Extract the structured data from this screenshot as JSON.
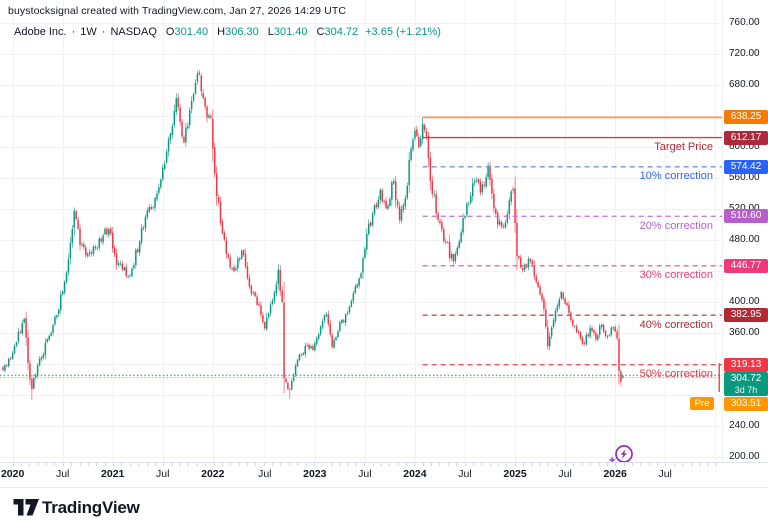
{
  "watermark": "buystocksignal created with TradingView.com, Jan 27, 2026 14:29 UTC",
  "legend": {
    "title": "Adobe Inc.",
    "dot1": "·",
    "timeframe": "1W",
    "dot2": "·",
    "exchange": "NASDAQ",
    "items": [
      {
        "k": "O",
        "v": "301.40"
      },
      {
        "k": "H",
        "v": "306.30"
      },
      {
        "k": "L",
        "v": "301.40"
      },
      {
        "k": "C",
        "v": "304.72"
      }
    ],
    "change": "+3.65 (+1.21%)"
  },
  "footer": {
    "brand": "TradingView"
  },
  "colors": {
    "up": "#089981",
    "down": "#F23645",
    "grid": "#F0F2F5",
    "axis_text": "#131722",
    "close_line": "#089981",
    "pre_line": "#FF9800",
    "flash": "#9C27B0",
    "flash_star": "#A64DFF"
  },
  "chart_data": {
    "type": "candlestick",
    "title": "Adobe Inc. · 1W · NASDAQ",
    "symbol": "Adobe Inc.",
    "timeframe": "1W",
    "exchange": "NASDAQ",
    "last": {
      "open": 301.4,
      "high": 306.3,
      "low": 301.4,
      "close": 304.72,
      "change": "+3.65 (+1.21%)",
      "countdown": "3d 7h"
    },
    "premarket": {
      "label": "Pre",
      "price": 303.51,
      "label_text": "303.51",
      "color": "#FF9800"
    },
    "close_chip": {
      "text": "304.72",
      "countdown": "3d 7h",
      "color": "#089981"
    },
    "y_axis": {
      "min": 190,
      "max": 775,
      "tick_step": 40,
      "grid_ticks": [
        760,
        720,
        680,
        640,
        600,
        560,
        520,
        480,
        440,
        400,
        360,
        320,
        280,
        240,
        200
      ],
      "visible_ticks": [
        760,
        720,
        680,
        600,
        560,
        520,
        480,
        440,
        400,
        360,
        240,
        200
      ]
    },
    "x_axis": {
      "ticks": [
        {
          "label": "2020",
          "week": 5,
          "major": true
        },
        {
          "label": "Jul",
          "week": 31,
          "major": false
        },
        {
          "label": "2021",
          "week": 57,
          "major": true
        },
        {
          "label": "Jul",
          "week": 83,
          "major": false
        },
        {
          "label": "2022",
          "week": 109,
          "major": true
        },
        {
          "label": "Jul",
          "week": 136,
          "major": false
        },
        {
          "label": "2023",
          "week": 162,
          "major": true
        },
        {
          "label": "Jul",
          "week": 188,
          "major": false
        },
        {
          "label": "2024",
          "week": 214,
          "major": true
        },
        {
          "label": "Jul",
          "week": 240,
          "major": false
        },
        {
          "label": "2025",
          "week": 266,
          "major": true
        },
        {
          "label": "Jul",
          "week": 292,
          "major": false
        },
        {
          "label": "2026",
          "week": 318,
          "major": true
        },
        {
          "label": "Jul",
          "week": 344,
          "major": false
        },
        {
          "label": "",
          "week": 370,
          "major": false
        }
      ]
    },
    "levels_start_week": 218,
    "levels": [
      {
        "price": 638.25,
        "label": "638.25",
        "style": "solid",
        "width": 2,
        "line_color": "#F7A168",
        "chip_color": "#F57C00",
        "text": null,
        "text_color": null
      },
      {
        "price": 612.17,
        "label": "612.17",
        "style": "solid",
        "width": 1.4,
        "line_color": "#C0454F",
        "chip_color": "#AD2A3A",
        "text": "Target Price",
        "text_color": "#AD2A3A"
      },
      {
        "price": 574.42,
        "label": "574.42",
        "style": "dashed",
        "width": 1.4,
        "line_color": "#6E93F7",
        "chip_color": "#2962FF",
        "text": "10% correction",
        "text_color": "#2962FF"
      },
      {
        "price": 510.6,
        "label": "510.60",
        "style": "dashed",
        "width": 1.4,
        "line_color": "#C77FD2",
        "chip_color": "#B75FC9",
        "text": "20% correction",
        "text_color": "#B75FC9"
      },
      {
        "price": 446.77,
        "label": "446.77",
        "style": "dashed",
        "width": 1.4,
        "line_color": "#F272A0",
        "chip_color": "#F0397B",
        "text": "30% correction",
        "text_color": "#F0397B"
      },
      {
        "price": 382.95,
        "label": "382.95",
        "style": "dashed",
        "width": 1.4,
        "line_color": "#C94A55",
        "chip_color": "#B22833",
        "text": "40% correction",
        "text_color": "#B22833"
      },
      {
        "price": 319.13,
        "label": "319.13",
        "style": "dashed",
        "width": 1.4,
        "line_color": "#F2545F",
        "chip_color": "#F23645",
        "text": "50% correction",
        "text_color": "#F23645"
      }
    ],
    "price_lines": [
      {
        "price": 304.72,
        "color": "#089981"
      },
      {
        "price": 303.51,
        "color": "#FF9800"
      }
    ],
    "edge_bar": {
      "top_price": 321,
      "bottom_price": 284,
      "color": "#F23645"
    },
    "weeks_total": 323,
    "seed": 5,
    "weekly_close_anchors": [
      [
        0,
        312
      ],
      [
        5,
        334
      ],
      [
        11,
        378
      ],
      [
        14,
        300
      ],
      [
        15,
        288
      ],
      [
        18,
        318
      ],
      [
        23,
        352
      ],
      [
        28,
        383
      ],
      [
        33,
        438
      ],
      [
        37,
        518
      ],
      [
        40,
        474
      ],
      [
        44,
        462
      ],
      [
        49,
        470
      ],
      [
        52,
        486
      ],
      [
        55,
        494
      ],
      [
        58,
        462
      ],
      [
        60,
        450
      ],
      [
        66,
        434
      ],
      [
        71,
        478
      ],
      [
        74,
        510
      ],
      [
        78,
        522
      ],
      [
        81,
        548
      ],
      [
        86,
        610
      ],
      [
        90,
        663
      ],
      [
        94,
        606
      ],
      [
        99,
        668
      ],
      [
        102,
        694
      ],
      [
        105,
        652
      ],
      [
        108,
        638
      ],
      [
        110,
        566
      ],
      [
        113,
        502
      ],
      [
        116,
        462
      ],
      [
        120,
        440
      ],
      [
        124,
        466
      ],
      [
        128,
        420
      ],
      [
        133,
        396
      ],
      [
        136,
        366
      ],
      [
        140,
        402
      ],
      [
        143,
        442
      ],
      [
        145,
        400
      ],
      [
        146,
        302
      ],
      [
        149,
        287
      ],
      [
        152,
        318
      ],
      [
        155,
        332
      ],
      [
        158,
        344
      ],
      [
        161,
        338
      ],
      [
        165,
        368
      ],
      [
        168,
        384
      ],
      [
        171,
        342
      ],
      [
        175,
        374
      ],
      [
        179,
        386
      ],
      [
        183,
        420
      ],
      [
        186,
        437
      ],
      [
        189,
        488
      ],
      [
        192,
        514
      ],
      [
        196,
        545
      ],
      [
        199,
        521
      ],
      [
        203,
        556
      ],
      [
        206,
        506
      ],
      [
        209,
        534
      ],
      [
        212,
        598
      ],
      [
        214,
        621
      ],
      [
        216,
        600
      ],
      [
        218,
        630
      ],
      [
        220,
        614
      ],
      [
        222,
        556
      ],
      [
        226,
        506
      ],
      [
        230,
        478
      ],
      [
        234,
        452
      ],
      [
        238,
        490
      ],
      [
        241,
        527
      ],
      [
        245,
        556
      ],
      [
        248,
        541
      ],
      [
        252,
        576
      ],
      [
        255,
        521
      ],
      [
        259,
        497
      ],
      [
        262,
        514
      ],
      [
        265,
        546
      ],
      [
        267,
        459
      ],
      [
        270,
        441
      ],
      [
        273,
        456
      ],
      [
        277,
        426
      ],
      [
        281,
        391
      ],
      [
        283,
        343
      ],
      [
        287,
        389
      ],
      [
        290,
        413
      ],
      [
        294,
        386
      ],
      [
        298,
        361
      ],
      [
        302,
        346
      ],
      [
        305,
        367
      ],
      [
        308,
        352
      ],
      [
        311,
        371
      ],
      [
        314,
        356
      ],
      [
        317,
        367
      ],
      [
        319,
        353
      ],
      [
        320,
        311
      ],
      [
        321,
        297
      ],
      [
        322,
        304.72
      ]
    ],
    "forced_bars": {
      "15": {
        "low": 274
      },
      "102": {
        "high": 699.5
      },
      "149": {
        "low": 275
      },
      "218": {
        "high": 638.25
      },
      "321": {
        "low": 291
      },
      "322": {
        "open": 301.4,
        "high": 306.3,
        "low": 301.4,
        "close": 304.72
      }
    }
  }
}
